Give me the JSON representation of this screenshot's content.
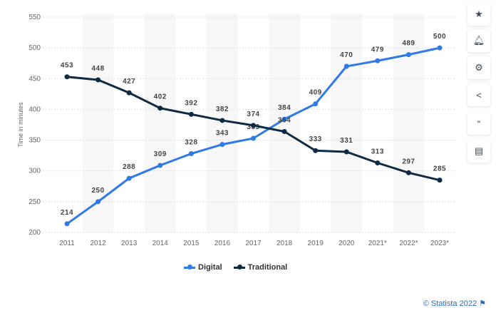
{
  "chart_data": {
    "type": "line",
    "categories": [
      "2011",
      "2012",
      "2013",
      "2014",
      "2015",
      "2016",
      "2017",
      "2018",
      "2019",
      "2020",
      "2021*",
      "2022*",
      "2023*"
    ],
    "series": [
      {
        "name": "Digital",
        "color": "#2f7ae5",
        "values": [
          214,
          250,
          288,
          309,
          328,
          343,
          353,
          384,
          409,
          470,
          479,
          489,
          500
        ]
      },
      {
        "name": "Traditional",
        "color": "#0f2a44",
        "values": [
          453,
          448,
          427,
          402,
          392,
          382,
          374,
          364,
          333,
          331,
          313,
          297,
          285
        ]
      }
    ],
    "ylabel": "Time in minutes",
    "ylim": [
      200,
      550
    ],
    "yticks": [
      200,
      250,
      300,
      350,
      400,
      450,
      500,
      550
    ],
    "grid": true,
    "legend": "bottom"
  },
  "sidebar": {
    "icons": [
      "star-icon",
      "bell-icon",
      "gear-icon",
      "share-icon",
      "quote-icon",
      "print-icon"
    ]
  },
  "credit": "© Statista 2022"
}
